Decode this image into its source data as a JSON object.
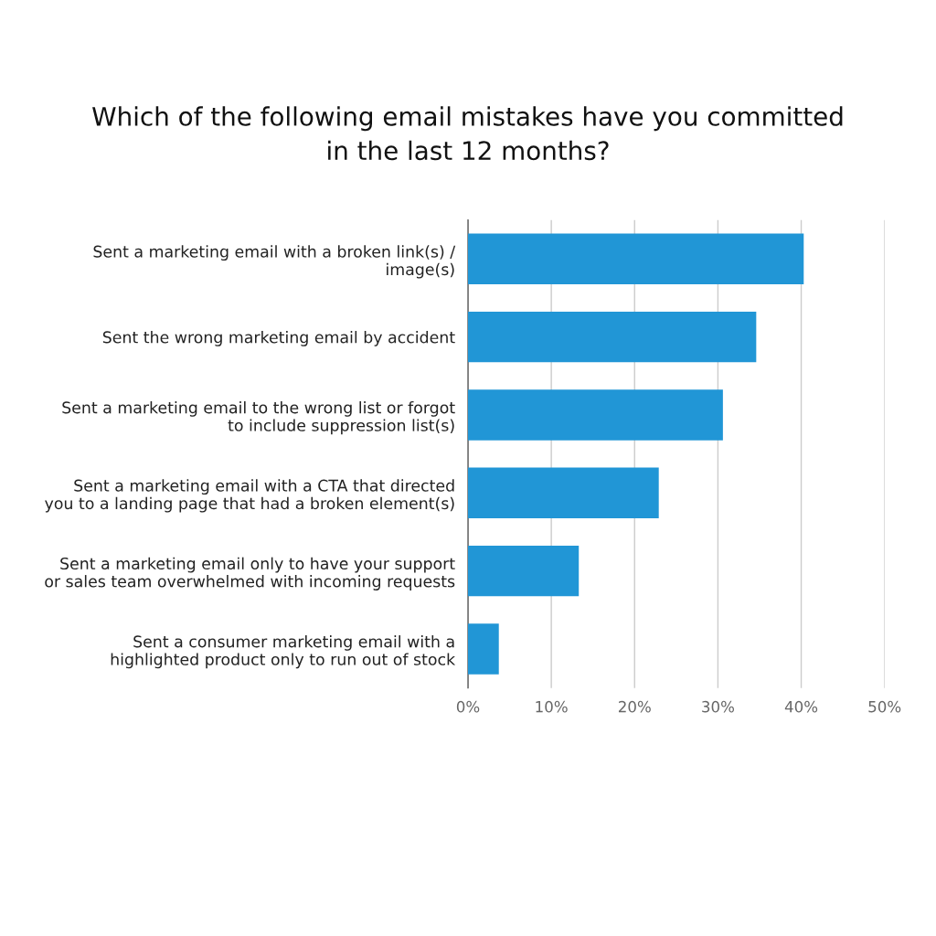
{
  "chart_data": {
    "type": "bar",
    "orientation": "horizontal",
    "title": "Which of the following email mistakes have you committed\nin the last 12 months?",
    "categories": [
      "Sent a marketing email with a broken link(s) /\nimage(s)",
      "Sent the wrong marketing email by accident",
      "Sent a marketing email to the wrong list or forgot\nto include suppression list(s)",
      "Sent a marketing email with a CTA that directed\nyou to a landing page that had a broken element(s)",
      "Sent a marketing email only to have your support\nor sales team overwhelmed with incoming requests",
      "Sent a consumer marketing email with a\nhighlighted product only to run out of stock"
    ],
    "values": [
      40.3,
      34.6,
      30.6,
      22.9,
      13.3,
      3.7
    ],
    "color": "#2196d6",
    "xlim": [
      0,
      50
    ],
    "xticks": [
      {
        "value": 0,
        "label": "0%"
      },
      {
        "value": 10,
        "label": "10%"
      },
      {
        "value": 20,
        "label": "20%"
      },
      {
        "value": 30,
        "label": "30%"
      },
      {
        "value": 40,
        "label": "40%"
      },
      {
        "value": 50,
        "label": "50%"
      }
    ],
    "grid": "x"
  }
}
